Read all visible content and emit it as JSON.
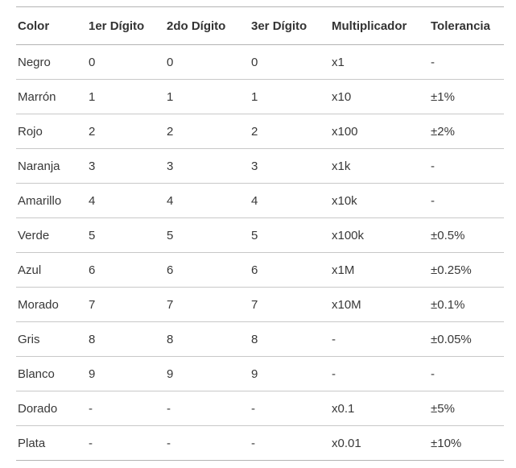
{
  "chart_data": {
    "type": "table",
    "columns": [
      "Color",
      "1er Dígito",
      "2do Dígito",
      "3er Dígito",
      "Multiplicador",
      "Tolerancia"
    ],
    "rows": [
      [
        "Negro",
        "0",
        "0",
        "0",
        "x1",
        "-"
      ],
      [
        "Marrón",
        "1",
        "1",
        "1",
        "x10",
        "±1%"
      ],
      [
        "Rojo",
        "2",
        "2",
        "2",
        "x100",
        "±2%"
      ],
      [
        "Naranja",
        "3",
        "3",
        "3",
        "x1k",
        "-"
      ],
      [
        "Amarillo",
        "4",
        "4",
        "4",
        "x10k",
        "-"
      ],
      [
        "Verde",
        "5",
        "5",
        "5",
        "x100k",
        "±0.5%"
      ],
      [
        "Azul",
        "6",
        "6",
        "6",
        "x1M",
        "±0.25%"
      ],
      [
        "Morado",
        "7",
        "7",
        "7",
        "x10M",
        "±0.1%"
      ],
      [
        "Gris",
        "8",
        "8",
        "8",
        "-",
        "±0.05%"
      ],
      [
        "Blanco",
        "9",
        "9",
        "9",
        "-",
        "-"
      ],
      [
        "Dorado",
        "-",
        "-",
        "-",
        "x0.1",
        "±5%"
      ],
      [
        "Plata",
        "-",
        "-",
        "-",
        "x0.01",
        "±10%"
      ]
    ],
    "layout": {
      "grid": "horizontal-row-separators",
      "header_position": "top"
    }
  },
  "colors": {
    "background": "#ffffff",
    "body_text": "#383838",
    "header_text": "#333333",
    "row_border": "#c8c8c8",
    "header_border": "#b4b4b4"
  }
}
